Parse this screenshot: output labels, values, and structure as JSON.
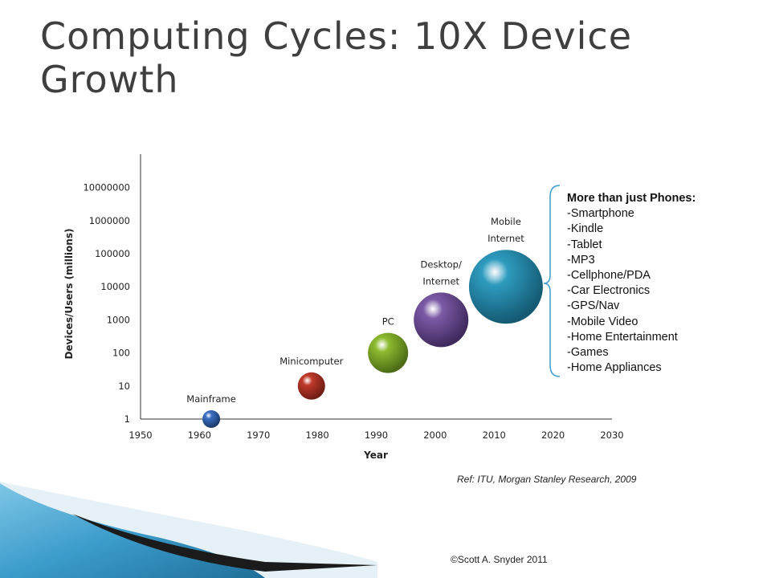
{
  "slide": {
    "title": "Computing Cycles: 10X Device Growth",
    "reference": "Ref: ITU, Morgan Stanley Research, 2009",
    "copyright": "©Scott A. Snyder 2011"
  },
  "callout": {
    "heading": "More than just Phones:",
    "items": [
      "-Smartphone",
      "-Kindle",
      "-Tablet",
      "-MP3",
      "-Cellphone/PDA",
      "-Car Electronics",
      "-GPS/Nav",
      "-Mobile Video",
      "-Home Entertainment",
      "-Games",
      "-Home Appliances"
    ]
  },
  "chart_data": {
    "type": "scatter",
    "subtype": "bubble",
    "title": "",
    "xlabel": "Year",
    "ylabel": "Devices/Users (millions)",
    "xlim": [
      1950,
      2030
    ],
    "x_ticks": [
      1950,
      1960,
      1970,
      1980,
      1990,
      2000,
      2010,
      2020,
      2030
    ],
    "y_scale": "log",
    "ylim": [
      1,
      100000000
    ],
    "y_tick_labels": [
      "1",
      "10",
      "100",
      "1000",
      "10000",
      "100000",
      "1000000",
      "10000000"
    ],
    "grid": false,
    "legend": "none",
    "points": [
      {
        "label": "Mainframe",
        "x": 1962,
        "y": 1,
        "color": "#3a6fc4"
      },
      {
        "label": "Minicomputer",
        "x": 1979,
        "y": 10,
        "color": "#c0392b"
      },
      {
        "label": "PC",
        "x": 1992,
        "y": 100,
        "color": "#8dbb2f"
      },
      {
        "label": "Desktop/ Internet",
        "x": 2001,
        "y": 1000,
        "color": "#7c5aa6"
      },
      {
        "label": "Mobile Internet",
        "x": 2012,
        "y": 10000,
        "color": "#2e9bbf"
      }
    ]
  }
}
